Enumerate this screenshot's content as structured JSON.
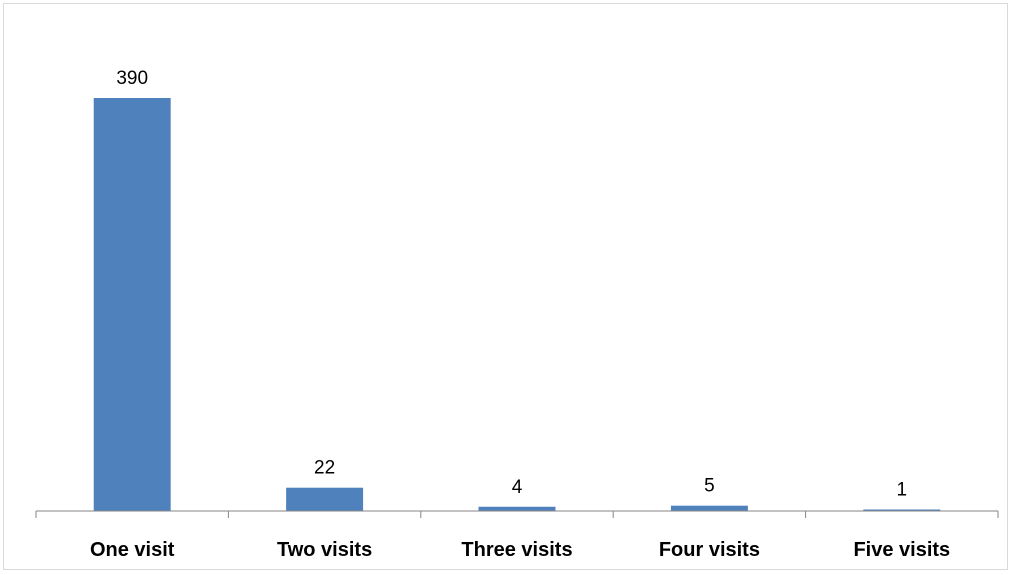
{
  "chart_data": {
    "type": "bar",
    "categories": [
      "One visit",
      "Two visits",
      "Three visits",
      "Four visits",
      "Five visits"
    ],
    "values": [
      390,
      22,
      4,
      5,
      1
    ],
    "title": "",
    "xlabel": "",
    "ylabel": "",
    "ylim": [
      0,
      400
    ],
    "grid": false,
    "legend": "none",
    "bar_color": "#4f81bd",
    "axis_color": "#868686"
  }
}
